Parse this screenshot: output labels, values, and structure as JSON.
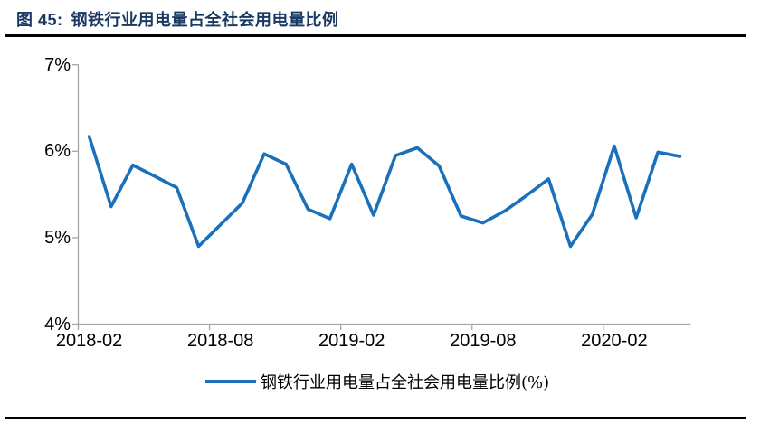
{
  "figure": {
    "label": "图 45:",
    "title": "钢铁行业用电量占全社会用电量比例"
  },
  "colors": {
    "title": "#1A3A63",
    "series_line": "#1B70BC",
    "axis": "#A6A6A6",
    "rule": "#000000",
    "text": "#000000"
  },
  "legend": {
    "label": "钢铁行业用电量占全社会用电量比例(%)"
  },
  "chart_data": {
    "type": "line",
    "title": "钢铁行业用电量占全社会用电量比例",
    "series_name": "钢铁行业用电量占全社会用电量比例(%)",
    "x": [
      "2018-02",
      "2018-03",
      "2018-04",
      "2018-05",
      "2018-06",
      "2018-07",
      "2018-08",
      "2018-09",
      "2018-10",
      "2018-11",
      "2018-12",
      "2019-01",
      "2019-02",
      "2019-03",
      "2019-04",
      "2019-05",
      "2019-06",
      "2019-07",
      "2019-08",
      "2019-09",
      "2019-10",
      "2019-11",
      "2019-12",
      "2020-01",
      "2020-02",
      "2020-03",
      "2020-04",
      "2020-05"
    ],
    "values": [
      6.17,
      5.36,
      5.84,
      5.71,
      5.58,
      4.9,
      5.15,
      5.4,
      5.97,
      5.85,
      5.33,
      5.22,
      5.85,
      5.26,
      5.95,
      6.04,
      5.83,
      5.25,
      5.17,
      5.31,
      5.49,
      5.68,
      4.9,
      5.27,
      6.06,
      5.23,
      5.99,
      5.94
    ],
    "x_tick_labels": [
      "2018-02",
      "2018-08",
      "2019-02",
      "2019-08",
      "2020-02"
    ],
    "x_tick_every_n_points": 6,
    "y_tick_labels": [
      "7%",
      "6%",
      "5%",
      "4%"
    ],
    "ylim": [
      4,
      7
    ],
    "unit": "%",
    "grid": false,
    "legend_position": "bottom"
  }
}
